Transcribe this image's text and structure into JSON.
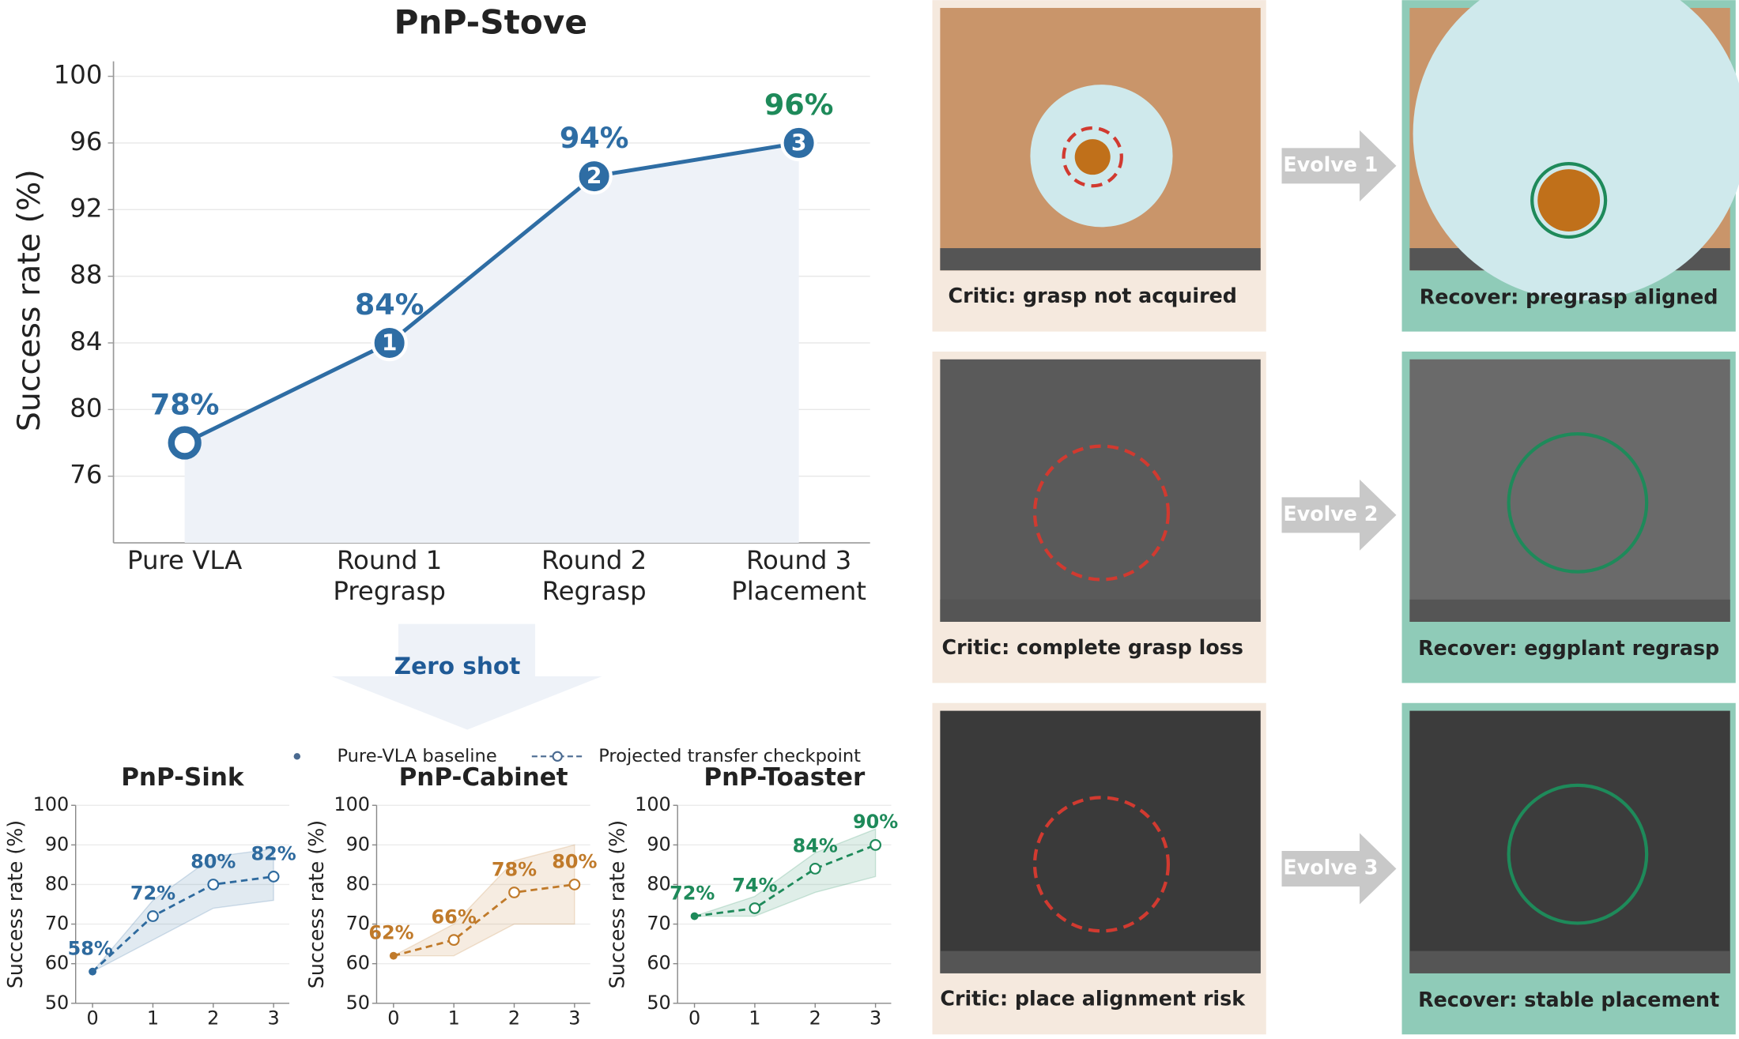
{
  "chart_data": [
    {
      "type": "line",
      "title": "PnP-Stove",
      "y_label": "Success rate (%)",
      "categories": [
        "Pure VLA",
        "Round 1\nPregrasp",
        "Round 2\nRegrasp",
        "Round 3\nPlacement"
      ],
      "values": [
        78,
        84,
        94,
        96
      ],
      "value_labels": [
        "78%",
        "84%",
        "94%",
        "96%"
      ],
      "step_labels": [
        null,
        "1",
        "2",
        "3"
      ],
      "label_colors": [
        "#2e6da4",
        "#2e6da4",
        "#2e6da4",
        "#1e8a5a"
      ],
      "color": "#2e6da4",
      "fill_color": "#eef2f8",
      "ylim": [
        72,
        100.9
      ],
      "yticks": [
        76,
        80,
        84,
        88,
        92,
        96,
        100
      ],
      "grid": true
    },
    {
      "type": "transfer",
      "title": "PnP-Sink",
      "y_label": "Success rate (%)",
      "color": "#2e6a9e",
      "x": [
        0,
        1,
        2,
        3
      ],
      "values": [
        58,
        72,
        80,
        82
      ],
      "value_labels": [
        "58%",
        "72%",
        "80%",
        "82%"
      ],
      "band_lower": [
        58,
        66,
        74,
        76
      ],
      "band_upper": [
        58,
        76,
        87,
        89
      ],
      "xlim": [
        -0.28,
        3.26
      ],
      "xticks": [
        0,
        1,
        2,
        3
      ],
      "ylim": [
        50,
        100
      ],
      "yticks": [
        50,
        60,
        70,
        80,
        90,
        100
      ],
      "grid": true
    },
    {
      "type": "transfer",
      "title": "PnP-Cabinet",
      "y_label": "Success rate (%)",
      "color": "#c07a2a",
      "x": [
        0,
        1,
        2,
        3
      ],
      "values": [
        62,
        66,
        78,
        80
      ],
      "value_labels": [
        "62%",
        "66%",
        "78%",
        "80%"
      ],
      "band_lower": [
        62,
        62,
        70,
        70
      ],
      "band_upper": [
        62,
        70,
        86,
        90
      ],
      "xlim": [
        -0.28,
        3.26
      ],
      "xticks": [
        0,
        1,
        2,
        3
      ],
      "ylim": [
        50,
        100
      ],
      "yticks": [
        50,
        60,
        70,
        80,
        90,
        100
      ],
      "grid": true
    },
    {
      "type": "transfer",
      "title": "PnP-Toaster",
      "y_label": "Success rate (%)",
      "color": "#1e8a5a",
      "x": [
        0,
        1,
        2,
        3
      ],
      "values": [
        72,
        74,
        84,
        90
      ],
      "value_labels": [
        "72%",
        "74%",
        "84%",
        "90%"
      ],
      "band_lower": [
        72,
        72,
        78,
        82
      ],
      "band_upper": [
        72,
        77,
        88,
        94
      ],
      "xlim": [
        -0.28,
        3.26
      ],
      "xticks": [
        0,
        1,
        2,
        3
      ],
      "ylim": [
        50,
        100
      ],
      "yticks": [
        50,
        60,
        70,
        80,
        90,
        100
      ],
      "grid": true
    }
  ],
  "zero_shot": "Zero shot",
  "transfer_legend": [
    "Pure-VLA baseline",
    "Projected transfer checkpoint"
  ],
  "panels": [
    {
      "critic": "Critic: grasp not acquired",
      "evolve": "Evolve 1",
      "recover": "Recover: pregrasp aligned"
    },
    {
      "critic": "Critic: complete grasp loss",
      "evolve": "Evolve 2",
      "recover": "Recover: eggplant regrasp"
    },
    {
      "critic": "Critic: place alignment risk",
      "evolve": "Evolve 3",
      "recover": "Recover: stable placement"
    }
  ]
}
